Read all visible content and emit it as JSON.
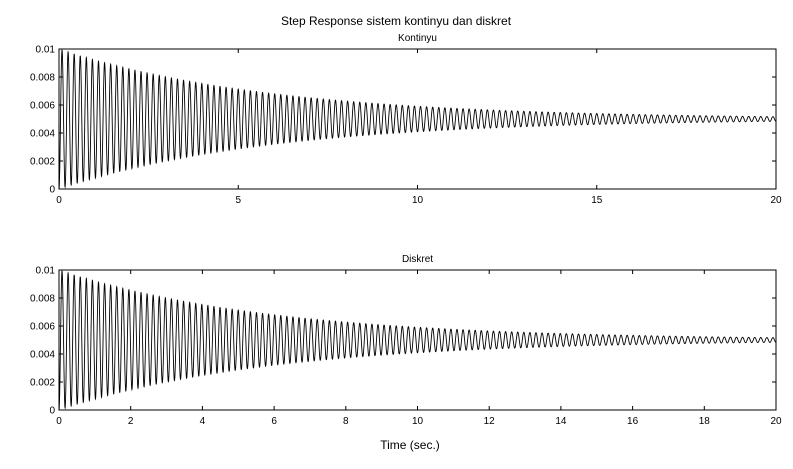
{
  "figure": {
    "title": "Step Response sistem kontinyu dan diskret",
    "xlabel": "Time (sec.)"
  },
  "chart_data": [
    {
      "type": "line",
      "title": "Kontinyu",
      "xlim": [
        0,
        20
      ],
      "ylim": [
        0,
        0.01
      ],
      "x_ticks": [
        0,
        5,
        10,
        15,
        20
      ],
      "x_tick_labels": [
        "0",
        "5",
        "10",
        "15",
        "20"
      ],
      "y_ticks": [
        0,
        0.002,
        0.004,
        0.006,
        0.008,
        0.01
      ],
      "y_tick_labels": [
        "0",
        "0.002",
        "0.004",
        "0.006",
        "0.008",
        "0.01"
      ],
      "grid": false,
      "series": [
        {
          "color": "#000000",
          "model": "damped_oscillation",
          "steady_state": 0.005,
          "initial_amplitude": 0.005,
          "decay_rate": 0.17,
          "oscillation_frequency_hz": 5.9
        }
      ]
    },
    {
      "type": "line",
      "title": "Diskret",
      "xlim": [
        0,
        20
      ],
      "ylim": [
        0,
        0.01
      ],
      "x_ticks": [
        0,
        2,
        4,
        6,
        8,
        10,
        12,
        14,
        16,
        18,
        20
      ],
      "x_tick_labels": [
        "0",
        "2",
        "4",
        "6",
        "8",
        "10",
        "12",
        "14",
        "16",
        "18",
        "20"
      ],
      "y_ticks": [
        0,
        0.002,
        0.004,
        0.006,
        0.008,
        0.01
      ],
      "y_tick_labels": [
        "0",
        "0.002",
        "0.004",
        "0.006",
        "0.008",
        "0.01"
      ],
      "grid": false,
      "series": [
        {
          "color": "#000000",
          "model": "damped_oscillation",
          "steady_state": 0.005,
          "initial_amplitude": 0.005,
          "decay_rate": 0.17,
          "oscillation_frequency_hz": 5.9
        }
      ]
    }
  ]
}
